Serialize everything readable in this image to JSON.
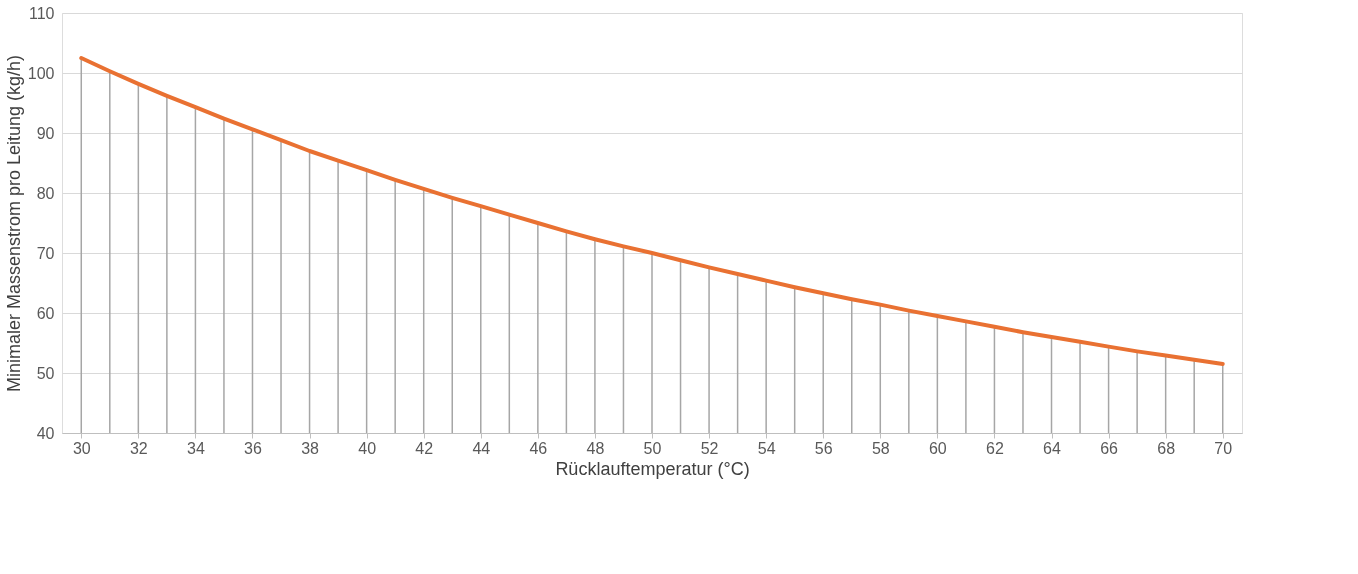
{
  "chart_data": {
    "type": "line",
    "xlabel": "Rücklauftemperatur (°C)",
    "ylabel": "Minimaler Massenstrom pro Leitung (kg/h)",
    "x": [
      30,
      31,
      32,
      33,
      34,
      35,
      36,
      37,
      38,
      39,
      40,
      41,
      42,
      43,
      44,
      45,
      46,
      47,
      48,
      49,
      50,
      51,
      52,
      53,
      54,
      55,
      56,
      57,
      58,
      59,
      60,
      61,
      62,
      63,
      64,
      65,
      66,
      67,
      68,
      69,
      70
    ],
    "series": [
      {
        "type": "bar",
        "color": "#a6a6a6",
        "values": [
          102.5,
          100.3,
          98.2,
          96.2,
          94.3,
          92.4,
          90.6,
          88.8,
          87.0,
          85.4,
          83.8,
          82.2,
          80.7,
          79.2,
          77.8,
          76.4,
          75.0,
          73.6,
          72.3,
          71.1,
          70.0,
          68.8,
          67.6,
          66.5,
          65.4,
          64.3,
          63.3,
          62.3,
          61.4,
          60.4,
          59.5,
          58.6,
          57.7,
          56.8,
          56.0,
          55.2,
          54.4,
          53.6,
          52.9,
          52.2,
          51.5
        ]
      },
      {
        "color": "#e97132",
        "values": [
          102.5,
          100.3,
          98.2,
          96.2,
          94.3,
          92.4,
          90.6,
          88.8,
          87.0,
          85.4,
          83.8,
          82.2,
          80.7,
          79.2,
          77.8,
          76.4,
          75.0,
          73.6,
          72.3,
          71.1,
          70.0,
          68.8,
          67.6,
          66.5,
          65.4,
          64.3,
          63.3,
          62.3,
          61.4,
          60.4,
          59.5,
          58.6,
          57.7,
          56.8,
          56.0,
          55.2,
          54.4,
          53.6,
          52.9,
          52.2,
          51.5
        ]
      }
    ],
    "xlim": [
      29.5,
      70.5
    ],
    "xticks": [
      30,
      32,
      34,
      36,
      38,
      40,
      42,
      44,
      46,
      48,
      50,
      52,
      54,
      56,
      58,
      60,
      62,
      64,
      66,
      68,
      70
    ],
    "ylim": [
      40,
      110
    ],
    "yticks": [
      40,
      50,
      60,
      70,
      80,
      90,
      100,
      110
    ],
    "grid": "y",
    "marker": "none",
    "line_style": "solid"
  }
}
